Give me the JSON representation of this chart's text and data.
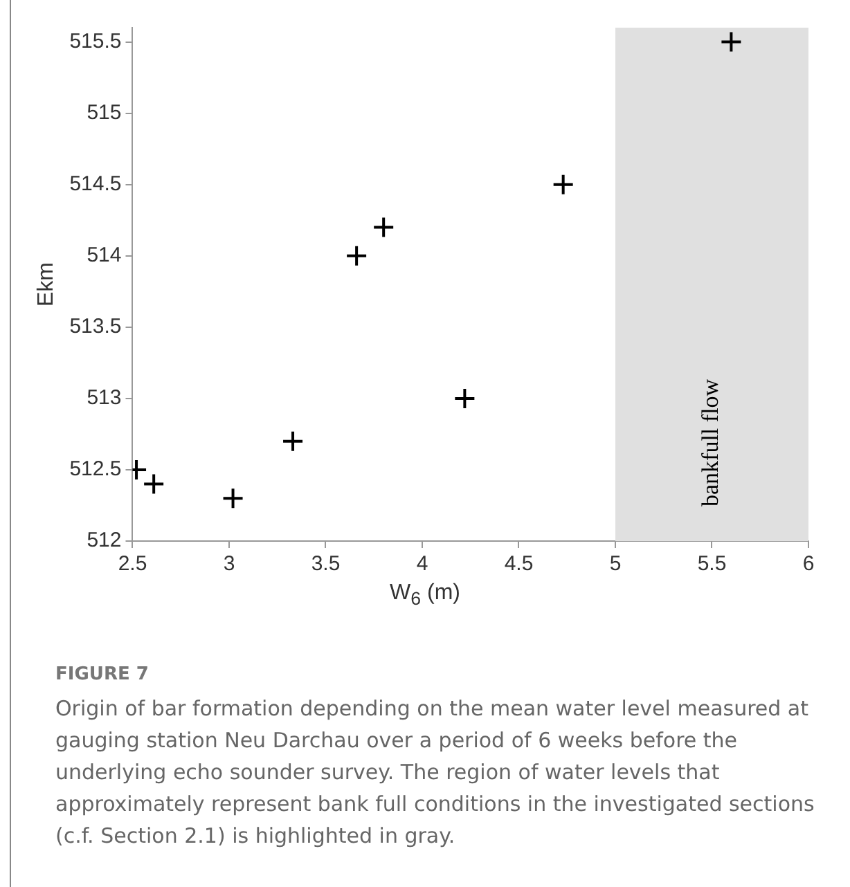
{
  "chart_data": {
    "type": "scatter",
    "xlabel": "W$_{6}$ (m)",
    "ylabel": "Ekm",
    "x": [
      2.52,
      2.61,
      3.02,
      3.33,
      3.66,
      3.8,
      4.22,
      4.73,
      5.6
    ],
    "series": [
      {
        "color": "#000000",
        "values": [
          512.5,
          512.4,
          512.3,
          512.7,
          514.0,
          514.2,
          513.0,
          514.5,
          515.5
        ]
      }
    ],
    "marker": "cross",
    "xlim": [
      2.5,
      6
    ],
    "ylim": [
      512,
      515.6
    ],
    "xticks": [
      2.5,
      3,
      3.5,
      4,
      4.5,
      5,
      5.5,
      6
    ],
    "yticks": [
      512,
      512.5,
      513,
      513.5,
      514,
      514.5,
      515,
      515.5
    ],
    "bands": [
      {
        "axis": "x",
        "from": 5,
        "to": 6,
        "label": "bankfull flow",
        "color": "#e0e0e0"
      }
    ],
    "annotations": [
      "FIGURE 7",
      "Origin of bar formation depending on the mean water level measured at gauging station Neu Darchau over a period of 6 weeks before the underlying echo sounder survey. The region of water levels that approximately represent bank full conditions in the investigated sections (c.f. Section 2.1) is highlighted in gray."
    ]
  }
}
